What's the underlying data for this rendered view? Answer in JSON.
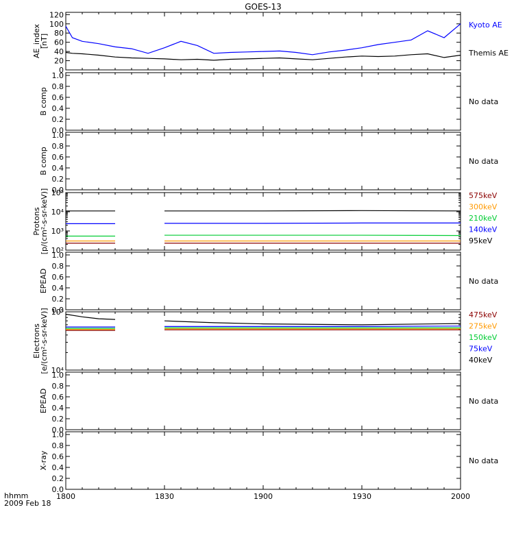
{
  "title": "GOES-13",
  "x_axis": {
    "range": [
      "18:00",
      "20:00"
    ],
    "tick_labels": [
      "1800",
      "1830",
      "1900",
      "1930",
      "2000"
    ],
    "corner_label": "hhmm",
    "date_label": "2009 Feb 18"
  },
  "colors": {
    "axis": "#000000",
    "blue": "#0000ff",
    "black": "#000000",
    "red": "#8b0000",
    "orange": "#ff9900",
    "green": "#00cc33"
  },
  "chart_data": [
    {
      "type": "line",
      "ylabel": [
        "AE_index",
        "[nT]"
      ],
      "ylim": [
        0,
        125
      ],
      "scale": "linear",
      "yticks": [
        0,
        20,
        40,
        60,
        80,
        100,
        120
      ],
      "ytick_labels": [
        "0",
        "20",
        "40",
        "60",
        "80",
        "100",
        "120"
      ],
      "x_minutes": [
        0,
        2,
        5,
        10,
        15,
        20,
        25,
        30,
        35,
        40,
        45,
        50,
        55,
        60,
        65,
        70,
        75,
        80,
        85,
        90,
        95,
        100,
        105,
        110,
        115,
        120
      ],
      "series": [
        {
          "name": "Kyoto AE",
          "color": "blue",
          "values": [
            95,
            70,
            62,
            57,
            50,
            46,
            36,
            48,
            62,
            53,
            36,
            38,
            39,
            40,
            41,
            38,
            33,
            39,
            43,
            48,
            55,
            60,
            65,
            85,
            70,
            100
          ]
        },
        {
          "name": "Themis AE",
          "color": "black",
          "values": [
            38,
            36,
            35,
            32,
            28,
            26,
            25,
            24,
            22,
            23,
            21,
            23,
            24,
            25,
            26,
            24,
            22,
            25,
            28,
            30,
            29,
            30,
            33,
            35,
            27,
            32
          ]
        }
      ]
    },
    {
      "type": "line",
      "ylabel": [
        "B comp"
      ],
      "ylim": [
        0,
        1.05
      ],
      "scale": "linear",
      "yticks": [
        0,
        0.2,
        0.4,
        0.6,
        0.8,
        1.0
      ],
      "ytick_labels": [
        "0.0",
        "0.2",
        "0.4",
        "0.6",
        "0.8",
        "1.0"
      ],
      "status": "No data",
      "series": []
    },
    {
      "type": "line",
      "ylabel": [
        "B comp"
      ],
      "ylim": [
        0,
        1.05
      ],
      "scale": "linear",
      "yticks": [
        0,
        0.2,
        0.4,
        0.6,
        0.8,
        1.0
      ],
      "ytick_labels": [
        "0.0",
        "0.2",
        "0.4",
        "0.6",
        "0.8",
        "1.0"
      ],
      "status": "No data",
      "series": []
    },
    {
      "type": "line",
      "ylabel": [
        "Protons",
        "[p/(cm²-s-sr-keV)]"
      ],
      "ylim": [
        100,
        100000
      ],
      "scale": "log",
      "yticks": [
        100,
        1000,
        10000,
        100000
      ],
      "ytick_labels": [
        "10²",
        "10³",
        "10⁴",
        "10⁵"
      ],
      "data_gap": [
        "18:15",
        "18:30"
      ],
      "x_minutes": [
        0,
        15,
        30,
        60,
        90,
        120
      ],
      "series": [
        {
          "name": "575keV",
          "color": "red",
          "values": [
            230,
            230,
            230,
            230,
            230,
            230
          ]
        },
        {
          "name": "300keV",
          "color": "orange",
          "values": [
            300,
            300,
            300,
            300,
            300,
            300
          ]
        },
        {
          "name": "210keV",
          "color": "green",
          "values": [
            540,
            540,
            600,
            600,
            600,
            580
          ]
        },
        {
          "name": "140keV",
          "color": "blue",
          "values": [
            2400,
            2400,
            2500,
            2500,
            2600,
            2600
          ]
        },
        {
          "name": "95keV",
          "color": "black",
          "values": [
            11000,
            11000,
            11000,
            11000,
            11500,
            11000
          ]
        }
      ]
    },
    {
      "type": "line",
      "ylabel": [
        "EPEAD"
      ],
      "ylim": [
        0,
        1.05
      ],
      "scale": "linear",
      "yticks": [
        0,
        0.2,
        0.4,
        0.6,
        0.8,
        1.0
      ],
      "ytick_labels": [
        "0.0",
        "0.2",
        "0.4",
        "0.6",
        "0.8",
        "1.0"
      ],
      "status": "No data",
      "series": []
    },
    {
      "type": "line",
      "ylabel": [
        "Electrons",
        "[e/(cm²-s-sr-keV)]"
      ],
      "ylim": [
        10000,
        100000
      ],
      "scale": "log",
      "yticks": [
        10000,
        100000
      ],
      "ytick_labels": [
        "10⁴",
        "10⁵"
      ],
      "data_gap": [
        "18:15",
        "18:30"
      ],
      "x_minutes": [
        0,
        5,
        10,
        15,
        30,
        45,
        60,
        90,
        120
      ],
      "series": [
        {
          "name": "475keV",
          "color": "red",
          "values": [
            48000,
            48000,
            48000,
            48000,
            49000,
            49000,
            49000,
            49000,
            49000
          ]
        },
        {
          "name": "275keV",
          "color": "orange",
          "values": [
            50000,
            50000,
            50000,
            50000,
            51000,
            51000,
            51000,
            51000,
            51000
          ]
        },
        {
          "name": "150keV",
          "color": "green",
          "values": [
            52000,
            52000,
            52000,
            52000,
            53000,
            53000,
            53000,
            53000,
            53000
          ]
        },
        {
          "name": "75keV",
          "color": "blue",
          "values": [
            55000,
            55000,
            55000,
            55000,
            56000,
            56000,
            56000,
            56000,
            57000
          ]
        },
        {
          "name": "40keV",
          "color": "black",
          "values": [
            91000,
            82000,
            76000,
            74000,
            70000,
            65000,
            62000,
            60000,
            63000
          ]
        }
      ]
    },
    {
      "type": "line",
      "ylabel": [
        "EPEAD"
      ],
      "ylim": [
        0,
        1.05
      ],
      "scale": "linear",
      "yticks": [
        0,
        0.2,
        0.4,
        0.6,
        0.8,
        1.0
      ],
      "ytick_labels": [
        "0.0",
        "0.2",
        "0.4",
        "0.6",
        "0.8",
        "1.0"
      ],
      "status": "No data",
      "series": []
    },
    {
      "type": "line",
      "ylabel": [
        "X-ray"
      ],
      "ylim": [
        0,
        1.05
      ],
      "scale": "linear",
      "yticks": [
        0,
        0.2,
        0.4,
        0.6,
        0.8,
        1.0
      ],
      "ytick_labels": [
        "0.0",
        "0.2",
        "0.4",
        "0.6",
        "0.8",
        "1.0"
      ],
      "status": "No data",
      "series": []
    }
  ]
}
